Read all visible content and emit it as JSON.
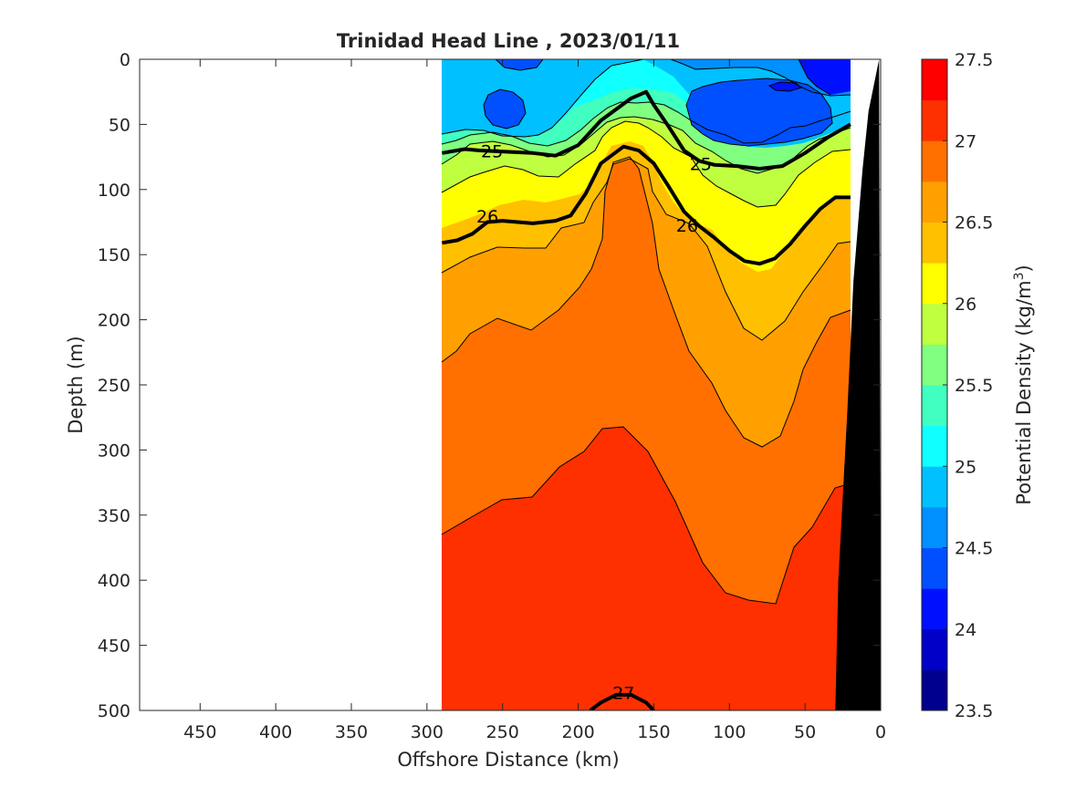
{
  "chart_data": {
    "type": "contour",
    "title": "Trinidad Head Line , 2023/01/11",
    "xlabel": "Offshore Distance (km)",
    "ylabel": "Depth (m)",
    "xlim": [
      490,
      0
    ],
    "ylim": [
      0,
      500
    ],
    "x_reversed": true,
    "y_reversed": true,
    "x_ticks": [
      450,
      400,
      350,
      300,
      250,
      200,
      150,
      100,
      50,
      0
    ],
    "y_ticks": [
      0,
      50,
      100,
      150,
      200,
      250,
      300,
      350,
      400,
      450,
      500
    ],
    "data_x_range": [
      290,
      20
    ],
    "colorbar": {
      "label": "Potential Density (kg/m",
      "label_sup": "3",
      "label_end": ")",
      "range": [
        23.5,
        27.5
      ],
      "tick_labels": [
        "23.5",
        "24",
        "24.5",
        "25",
        "25.5",
        "26",
        "26.5",
        "27",
        "27.5"
      ],
      "levels": [
        23.5,
        23.75,
        24.0,
        24.25,
        24.5,
        24.75,
        25.0,
        25.25,
        25.5,
        25.75,
        26.0,
        26.25,
        26.5,
        26.75,
        27.0,
        27.25,
        27.5
      ],
      "colors": [
        "#00008f",
        "#0000c8",
        "#0010ff",
        "#0050ff",
        "#0090ff",
        "#00c0ff",
        "#10ffff",
        "#40ffc0",
        "#80ff80",
        "#c0ff40",
        "#ffff00",
        "#ffc000",
        "#ffa000",
        "#ff7000",
        "#ff3000",
        "#ff0000",
        "#b40000"
      ]
    },
    "labeled_isopycnals": [
      {
        "value": "25",
        "points": [
          [
            290,
            72
          ],
          [
            275,
            69
          ],
          [
            265,
            70
          ],
          [
            230,
            72
          ],
          [
            215,
            74
          ],
          [
            200,
            66
          ],
          [
            185,
            47
          ],
          [
            165,
            30
          ],
          [
            155,
            25
          ],
          [
            150,
            35
          ],
          [
            140,
            52
          ],
          [
            130,
            70
          ],
          [
            120,
            78
          ],
          [
            110,
            81
          ],
          [
            95,
            82
          ],
          [
            80,
            84
          ],
          [
            65,
            82
          ],
          [
            50,
            72
          ],
          [
            35,
            60
          ],
          [
            20,
            50
          ]
        ]
      },
      {
        "value": "26",
        "points": [
          [
            290,
            141
          ],
          [
            280,
            139
          ],
          [
            270,
            134
          ],
          [
            260,
            125
          ],
          [
            250,
            124
          ],
          [
            230,
            126
          ],
          [
            215,
            124
          ],
          [
            205,
            120
          ],
          [
            195,
            103
          ],
          [
            185,
            80
          ],
          [
            170,
            67
          ],
          [
            160,
            70
          ],
          [
            150,
            80
          ],
          [
            140,
            98
          ],
          [
            130,
            117
          ],
          [
            120,
            128
          ],
          [
            110,
            137
          ],
          [
            100,
            147
          ],
          [
            90,
            155
          ],
          [
            80,
            157
          ],
          [
            70,
            153
          ],
          [
            60,
            142
          ],
          [
            50,
            128
          ],
          [
            40,
            115
          ],
          [
            30,
            106
          ],
          [
            20,
            106
          ]
        ]
      },
      {
        "value": "27",
        "points": [
          [
            192,
            500
          ],
          [
            185,
            494
          ],
          [
            175,
            488
          ],
          [
            165,
            488
          ],
          [
            155,
            494
          ],
          [
            150,
            500
          ]
        ]
      }
    ],
    "contour_label_positions": [
      {
        "text": "25",
        "x": 257,
        "y": 71
      },
      {
        "text": "25",
        "x": 119,
        "y": 81
      },
      {
        "text": "26",
        "x": 260,
        "y": 121
      },
      {
        "text": "26",
        "x": 128,
        "y": 128
      },
      {
        "text": "27",
        "x": 170,
        "y": 487
      }
    ],
    "bathymetry": {
      "color": "#000000",
      "points": [
        [
          1,
          0
        ],
        [
          8,
          40
        ],
        [
          12,
          85
        ],
        [
          18,
          170
        ],
        [
          22,
          270
        ],
        [
          28,
          400
        ],
        [
          30,
          500
        ]
      ]
    }
  }
}
